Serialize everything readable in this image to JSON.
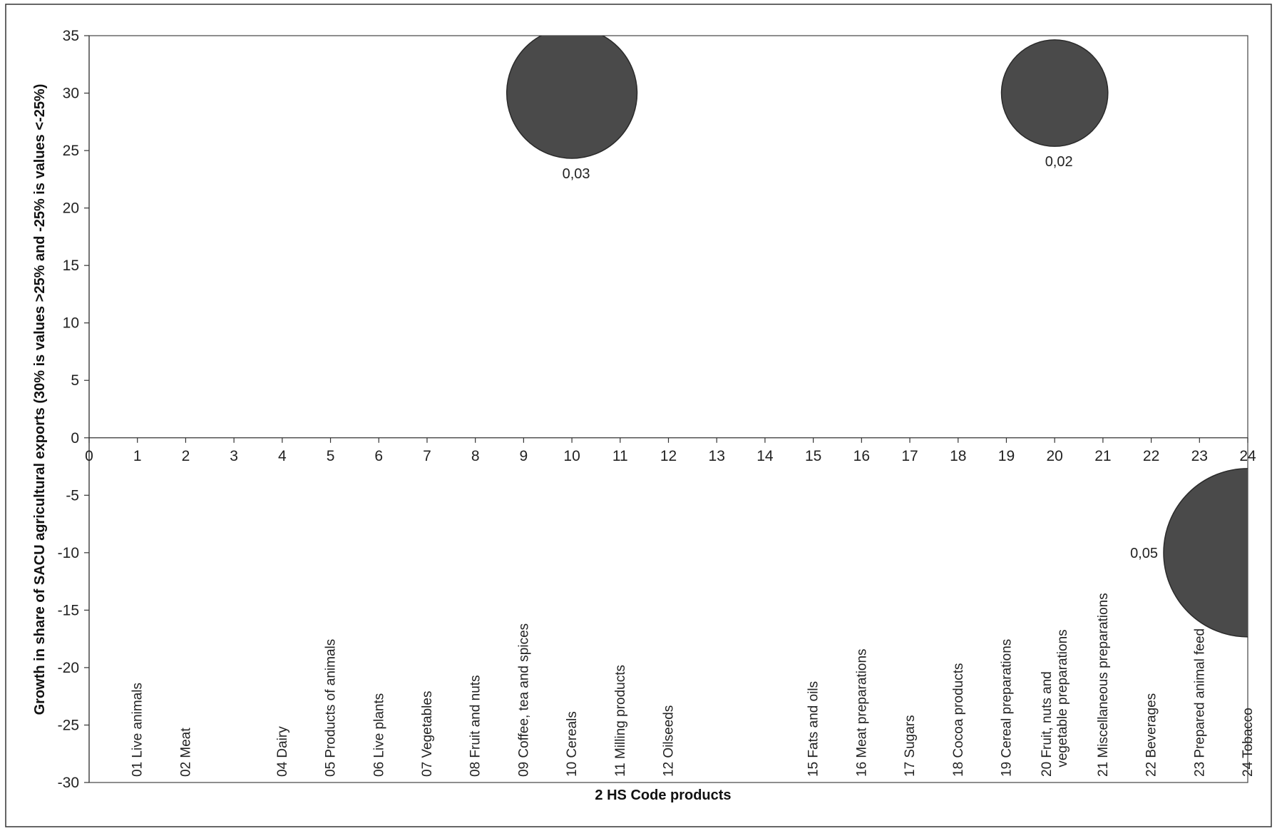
{
  "chart_data": {
    "type": "scatter",
    "subtype": "bubble",
    "title": "",
    "xlabel": "2 HS Code products",
    "ylabel": "Growth in share of SACU agricultural exports (30% is values >25% and -25% is values <-25%)",
    "xlim": [
      0,
      24
    ],
    "ylim": [
      -30,
      35
    ],
    "x_ticks": [
      0,
      1,
      2,
      3,
      4,
      5,
      6,
      7,
      8,
      9,
      10,
      11,
      12,
      13,
      14,
      15,
      16,
      17,
      18,
      19,
      20,
      21,
      22,
      23,
      24
    ],
    "y_ticks": [
      35,
      30,
      25,
      20,
      15,
      10,
      5,
      0,
      -5,
      -10,
      -15,
      -20,
      -25,
      -30
    ],
    "grid": false,
    "legend": "none",
    "bubble_color": "#4a4a4a",
    "categories": [
      {
        "x": 1,
        "label": "01 Live animals"
      },
      {
        "x": 2,
        "label": "02 Meat"
      },
      {
        "x": 4,
        "label": "04 Dairy"
      },
      {
        "x": 5,
        "label": "05 Products of animals"
      },
      {
        "x": 6,
        "label": "06 Live plants"
      },
      {
        "x": 7,
        "label": "07 Vegetables"
      },
      {
        "x": 8,
        "label": "08 Fruit and nuts"
      },
      {
        "x": 9,
        "label": "09 Coffee, tea and spices"
      },
      {
        "x": 10,
        "label": "10 Cereals"
      },
      {
        "x": 11,
        "label": "11 Milling products"
      },
      {
        "x": 12,
        "label": "12 Oilseeds"
      },
      {
        "x": 15,
        "label": "15 Fats and oils"
      },
      {
        "x": 16,
        "label": "16 Meat preparations"
      },
      {
        "x": 17,
        "label": "17 Sugars"
      },
      {
        "x": 18,
        "label": "18 Cocoa products"
      },
      {
        "x": 19,
        "label": "19 Cereal preparations"
      },
      {
        "x": 20,
        "label": "20 Fruit, nuts and vegetable preparations"
      },
      {
        "x": 21,
        "label": "21 Miscellaneous preparations"
      },
      {
        "x": 22,
        "label": "22 Beverages"
      },
      {
        "x": 23,
        "label": "23 Prepared animal feed"
      },
      {
        "x": 24,
        "label": "24 Tobacco"
      }
    ],
    "bubbles": [
      {
        "x": 10,
        "y": 30,
        "size": 0.03,
        "label": "0,03"
      },
      {
        "x": 20,
        "y": 30,
        "size": 0.02,
        "label": "0,02"
      },
      {
        "x": 24,
        "y": -10,
        "size": 0.05,
        "label": "0,05"
      }
    ]
  }
}
